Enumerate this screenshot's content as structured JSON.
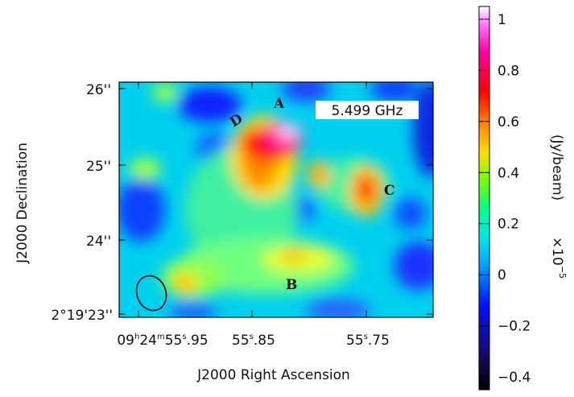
{
  "chart_data": {
    "type": "heatmap",
    "title": "",
    "annotation": "5.499 GHz",
    "xlabel": "J2000 Right Ascension",
    "ylabel": "J2000 Declination",
    "x_ticks": [
      "09h24m55s.95",
      "55s.85",
      "55s.75"
    ],
    "x_tick_labels": [
      {
        "main": "09",
        "sup1": "h",
        "mid1": "24",
        "sup2": "m",
        "mid2": "55",
        "sup3": "s",
        "tail": ".95"
      },
      {
        "main": "55",
        "sup1": "s",
        "tail": ".85"
      },
      {
        "main": "55",
        "sup1": "s",
        "tail": ".75"
      }
    ],
    "y_ticks": [
      "26''",
      "25''",
      "24''",
      "2°19'23''"
    ],
    "colorbar": {
      "label": "(Jy/beam)",
      "multiplier": "×10",
      "multiplier_exp": "−5",
      "range": [
        -0.45,
        1.05
      ],
      "ticks": [
        "1",
        "0.8",
        "0.6",
        "0.4",
        "0.2",
        "0",
        "−0.2",
        "−0.4"
      ],
      "tick_values": [
        1,
        0.8,
        0.6,
        0.4,
        0.2,
        0,
        -0.2,
        -0.4
      ],
      "colormap": [
        "#000000",
        "#1a0a6e",
        "#0010ff",
        "#00c8ff",
        "#00ff90",
        "#7cff00",
        "#ffe000",
        "#ff8000",
        "#ff0000",
        "#ff00a0",
        "#ff70ff",
        "#ffffff"
      ]
    },
    "components": [
      {
        "label": "A",
        "peak": 1.0
      },
      {
        "label": "B",
        "peak": 0.45
      },
      {
        "label": "C",
        "peak": 0.7
      },
      {
        "label": "D",
        "peak": 0.55
      }
    ],
    "beam": "ellipse"
  }
}
